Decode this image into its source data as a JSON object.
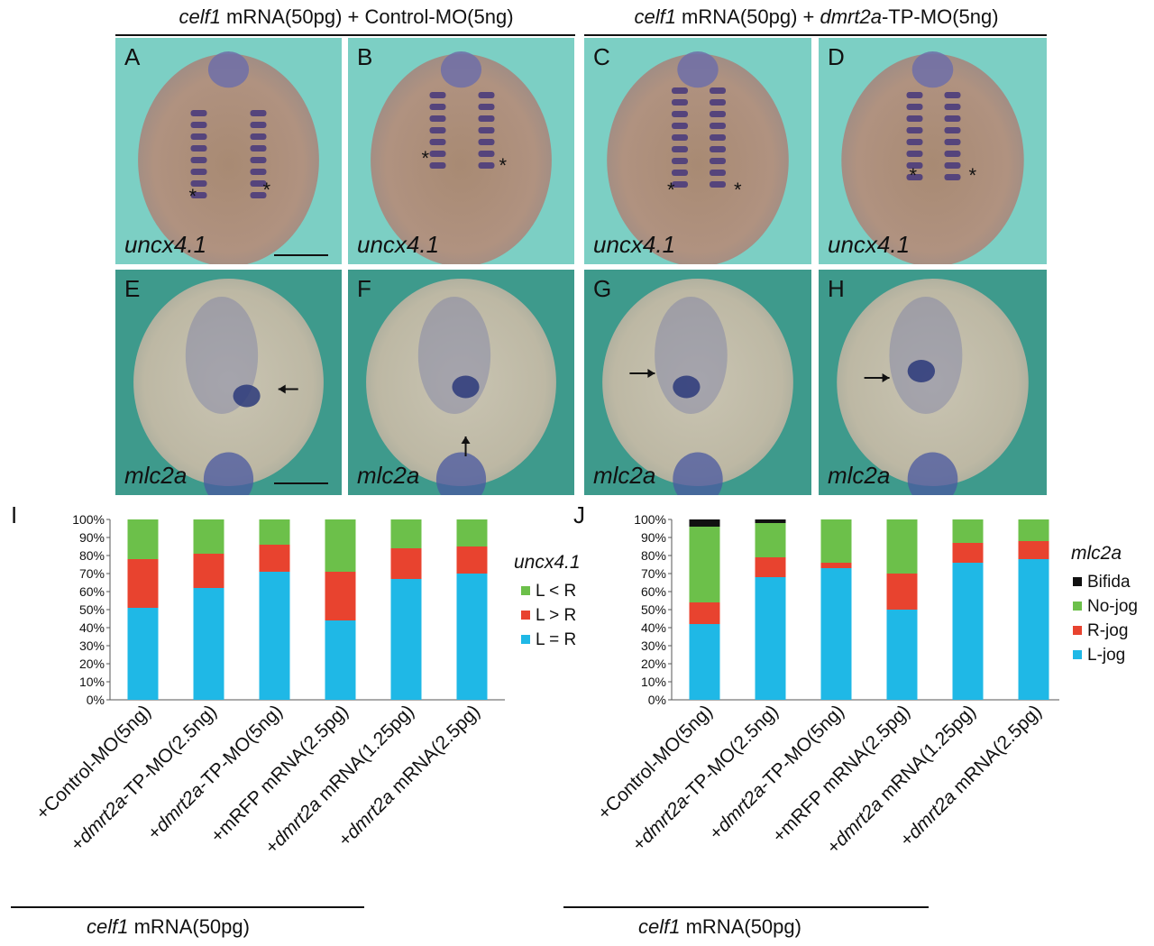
{
  "headers": {
    "left": {
      "gene": "celf1",
      "rest": " mRNA(50pg) + Control-MO(5ng)"
    },
    "right": {
      "gene": "celf1",
      "rest_a": " mRNA(50pg) + ",
      "gene2": "dmrt2a",
      "rest_b": "-TP-MO(5ng)"
    }
  },
  "panels": [
    {
      "letter": "A",
      "gene": "uncx4.1",
      "row": "top"
    },
    {
      "letter": "B",
      "gene": "uncx4.1",
      "row": "top"
    },
    {
      "letter": "C",
      "gene": "uncx4.1",
      "row": "top"
    },
    {
      "letter": "D",
      "gene": "uncx4.1",
      "row": "top"
    },
    {
      "letter": "E",
      "gene": "mlc2a",
      "row": "bottom"
    },
    {
      "letter": "F",
      "gene": "mlc2a",
      "row": "bottom"
    },
    {
      "letter": "G",
      "gene": "mlc2a",
      "row": "bottom"
    },
    {
      "letter": "H",
      "gene": "mlc2a",
      "row": "bottom"
    }
  ],
  "colors": {
    "green": "#6cc04a",
    "red": "#e8432f",
    "blue": "#1fb8e6",
    "black": "#111111",
    "bg_top": "#7ccfc4",
    "bg_bottom": "#3e9a8c"
  },
  "bottom_label": {
    "gene": "celf1",
    "rest": " mRNA(50pg)"
  },
  "chart_data": [
    {
      "type": "bar",
      "panel": "I",
      "stacked": true,
      "legend_title": "uncx4.1",
      "legend_position": "right",
      "yticks": [
        "0%",
        "10%",
        "20%",
        "30%",
        "40%",
        "50%",
        "60%",
        "70%",
        "80%",
        "90%",
        "100%"
      ],
      "ylim": [
        0,
        100
      ],
      "categories": [
        [
          {
            "t": "+Control-MO(5ng)",
            "i": false
          }
        ],
        [
          {
            "t": "+",
            "i": false
          },
          {
            "t": "dmrt2a",
            "i": true
          },
          {
            "t": "-TP-MO(2.5ng)",
            "i": false
          }
        ],
        [
          {
            "t": "+",
            "i": false
          },
          {
            "t": "dmrt2a",
            "i": true
          },
          {
            "t": "-TP-MO(5ng)",
            "i": false
          }
        ],
        [
          {
            "t": "+mRFP mRNA(2.5pg)",
            "i": false
          }
        ],
        [
          {
            "t": "+",
            "i": false
          },
          {
            "t": "dmrt2a",
            "i": true
          },
          {
            "t": " mRNA(1.25pg)",
            "i": false
          }
        ],
        [
          {
            "t": "+",
            "i": false
          },
          {
            "t": "dmrt2a",
            "i": true
          },
          {
            "t": " mRNA(2.5pg)",
            "i": false
          }
        ]
      ],
      "series": [
        {
          "name": "L = R",
          "color": "#1fb8e6",
          "values": [
            51,
            62,
            71,
            44,
            67,
            70
          ]
        },
        {
          "name": "L > R",
          "color": "#e8432f",
          "values": [
            27,
            19,
            15,
            27,
            17,
            15
          ]
        },
        {
          "name": "L < R",
          "color": "#6cc04a",
          "values": [
            22,
            19,
            14,
            29,
            16,
            15
          ]
        }
      ]
    },
    {
      "type": "bar",
      "panel": "J",
      "stacked": true,
      "legend_title": "mlc2a",
      "legend_position": "right",
      "yticks": [
        "0%",
        "10%",
        "20%",
        "30%",
        "40%",
        "50%",
        "60%",
        "70%",
        "80%",
        "90%",
        "100%"
      ],
      "ylim": [
        0,
        100
      ],
      "categories": [
        [
          {
            "t": "+Control-MO(5ng)",
            "i": false
          }
        ],
        [
          {
            "t": "+",
            "i": false
          },
          {
            "t": "dmrt2a",
            "i": true
          },
          {
            "t": "-TP-MO(2.5ng)",
            "i": false
          }
        ],
        [
          {
            "t": "+",
            "i": false
          },
          {
            "t": "dmrt2a",
            "i": true
          },
          {
            "t": "-TP-MO(5ng)",
            "i": false
          }
        ],
        [
          {
            "t": "+mRFP mRNA(2.5pg)",
            "i": false
          }
        ],
        [
          {
            "t": "+",
            "i": false
          },
          {
            "t": "dmrt2a",
            "i": true
          },
          {
            "t": " mRNA(1.25pg)",
            "i": false
          }
        ],
        [
          {
            "t": "+",
            "i": false
          },
          {
            "t": "dmrt2a",
            "i": true
          },
          {
            "t": " mRNA(2.5pg)",
            "i": false
          }
        ]
      ],
      "series": [
        {
          "name": "L-jog",
          "color": "#1fb8e6",
          "values": [
            42,
            68,
            73,
            50,
            76,
            78
          ]
        },
        {
          "name": "R-jog",
          "color": "#e8432f",
          "values": [
            12,
            11,
            3,
            20,
            11,
            10
          ]
        },
        {
          "name": "No-jog",
          "color": "#6cc04a",
          "values": [
            42,
            19,
            24,
            30,
            13,
            12
          ]
        },
        {
          "name": "Bifida",
          "color": "#111111",
          "values": [
            4,
            2,
            0,
            0,
            0,
            0
          ]
        }
      ]
    }
  ]
}
